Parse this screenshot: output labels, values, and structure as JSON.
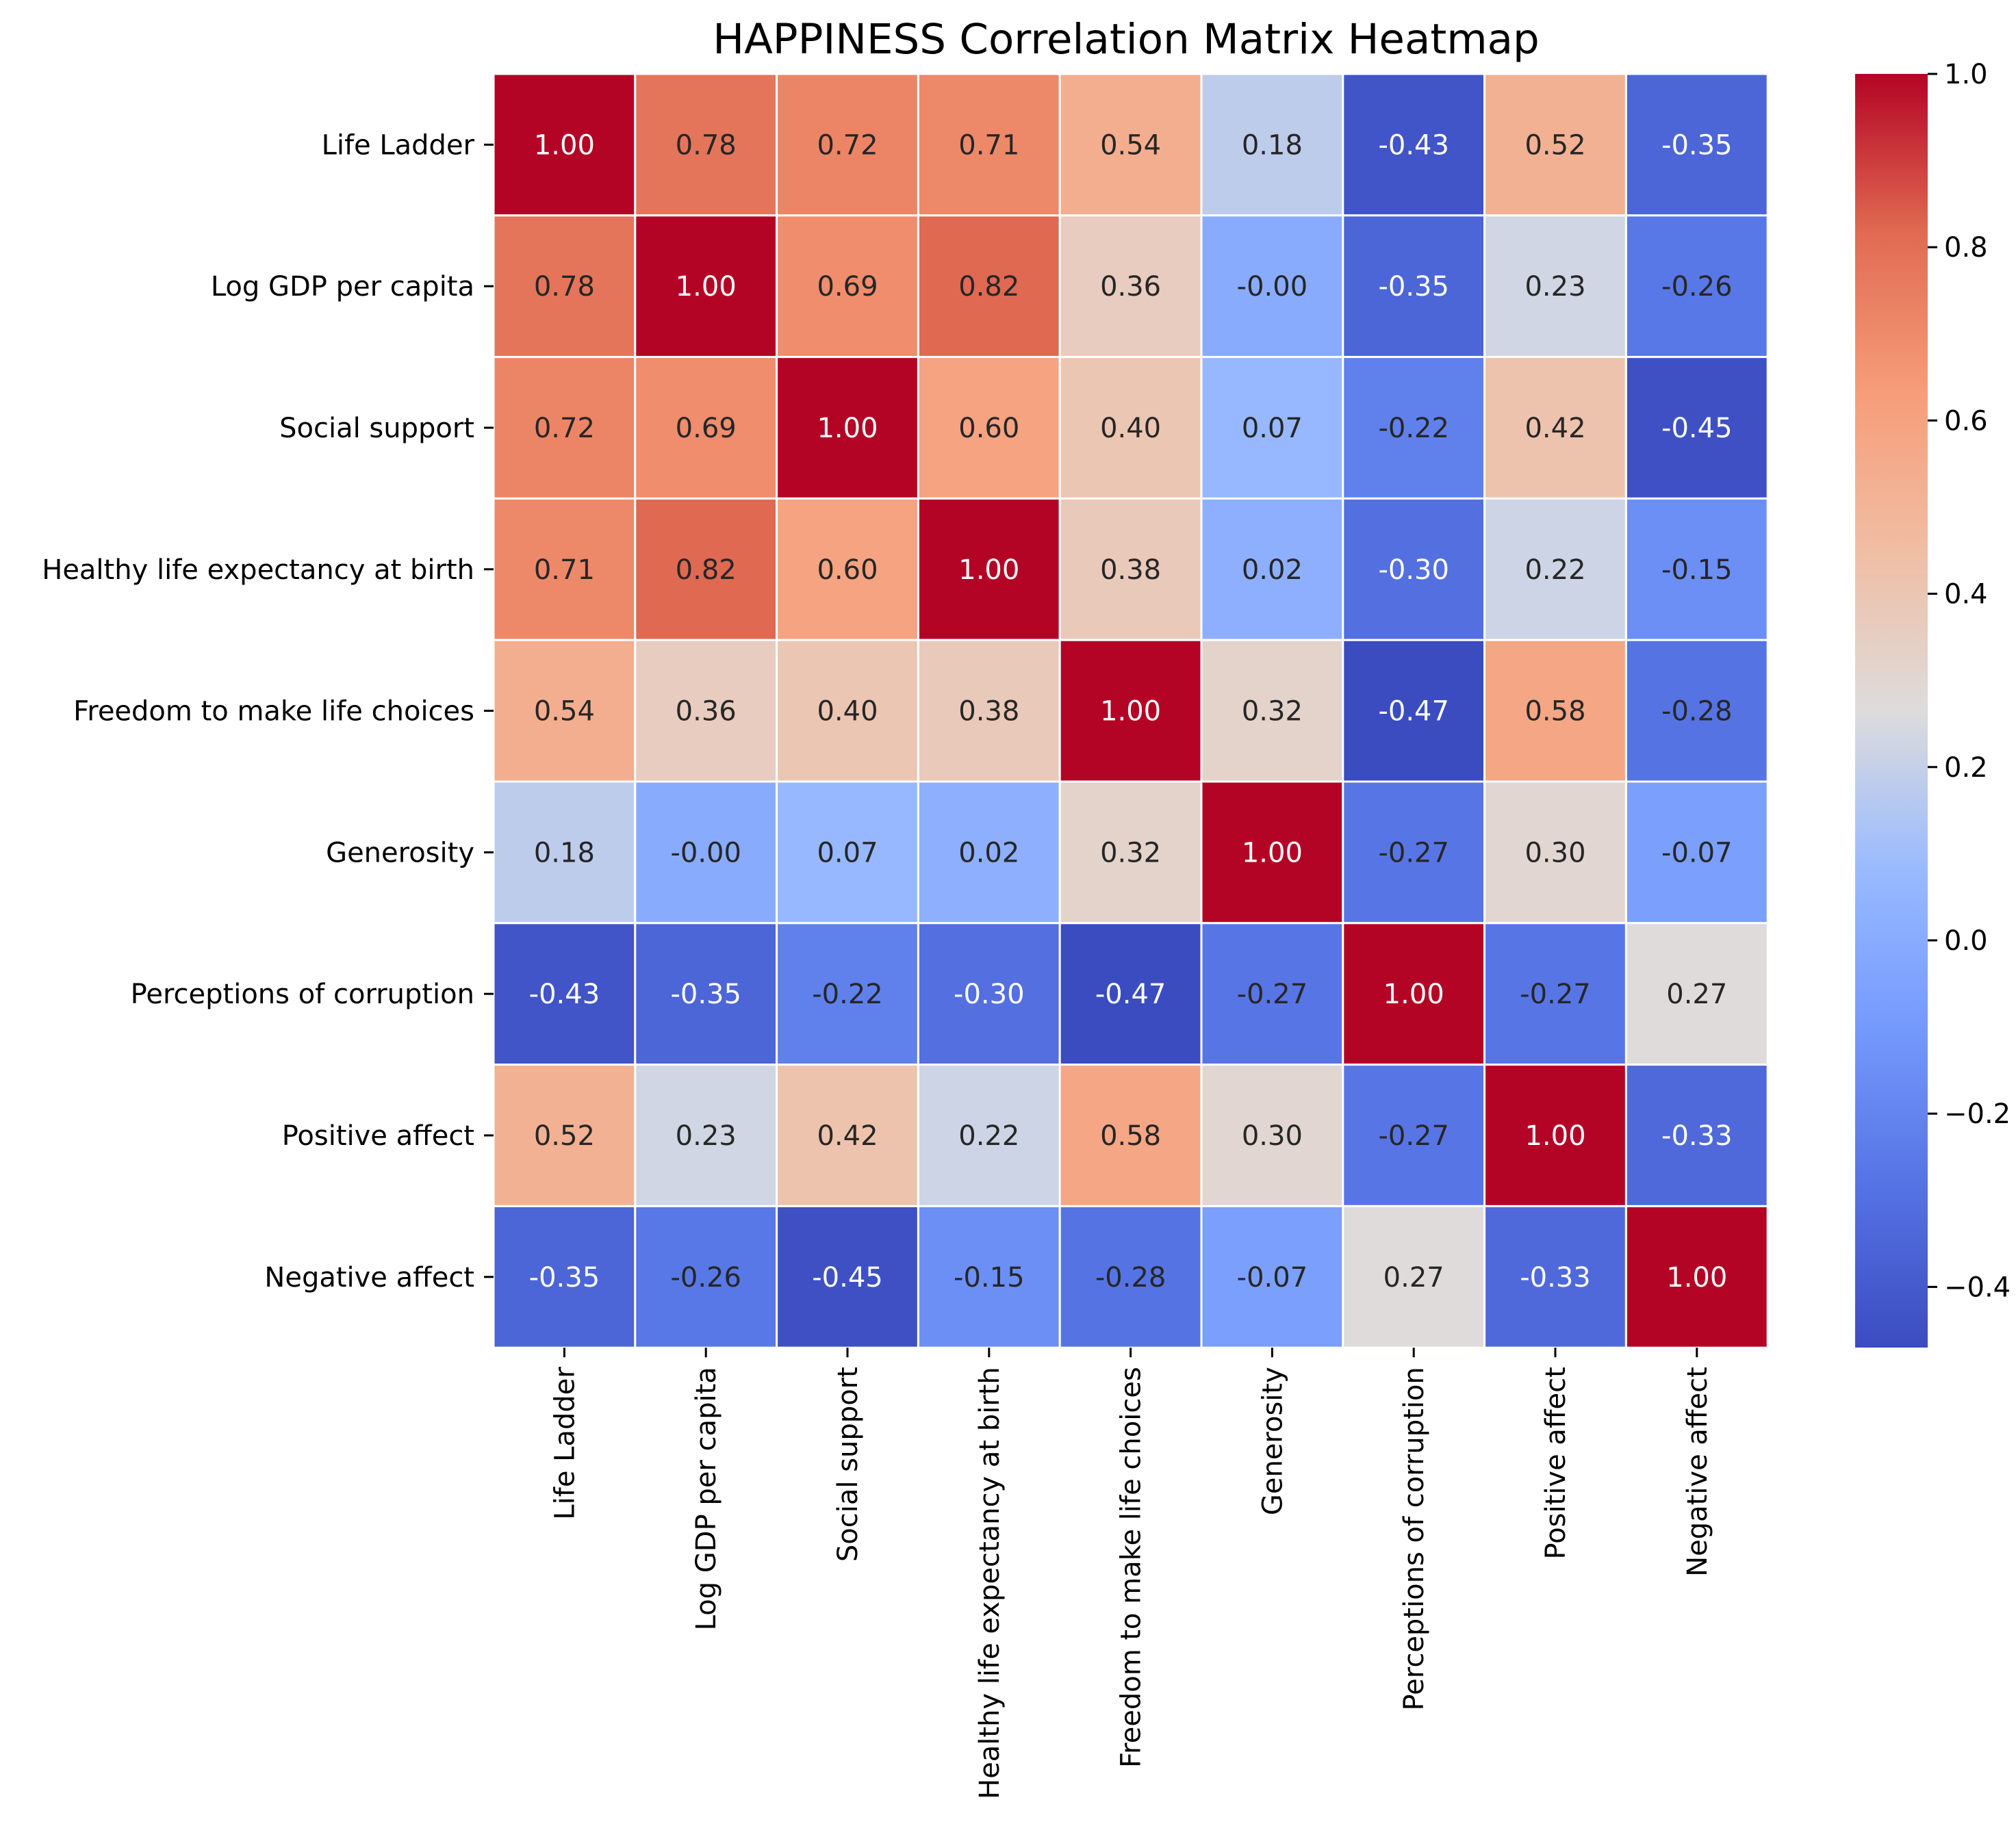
{
  "chart_data": {
    "type": "heatmap",
    "title": "HAPPINESS Correlation Matrix Heatmap",
    "xlabel": "",
    "ylabel": "",
    "labels": [
      "Life Ladder",
      "Log GDP per capita",
      "Social support",
      "Healthy life expectancy at birth",
      "Freedom to make life choices",
      "Generosity",
      "Perceptions of corruption",
      "Positive affect",
      "Negative affect"
    ],
    "values": [
      [
        1.0,
        0.78,
        0.72,
        0.71,
        0.54,
        0.18,
        -0.43,
        0.52,
        -0.35
      ],
      [
        0.78,
        1.0,
        0.69,
        0.82,
        0.36,
        -0.0,
        -0.35,
        0.23,
        -0.26
      ],
      [
        0.72,
        0.69,
        1.0,
        0.6,
        0.4,
        0.07,
        -0.22,
        0.42,
        -0.45
      ],
      [
        0.71,
        0.82,
        0.6,
        1.0,
        0.38,
        0.02,
        -0.3,
        0.22,
        -0.15
      ],
      [
        0.54,
        0.36,
        0.4,
        0.38,
        1.0,
        0.32,
        -0.47,
        0.58,
        -0.28
      ],
      [
        0.18,
        -0.0,
        0.07,
        0.02,
        0.32,
        1.0,
        -0.27,
        0.3,
        -0.07
      ],
      [
        -0.43,
        -0.35,
        -0.22,
        -0.3,
        -0.47,
        -0.27,
        1.0,
        -0.27,
        0.27
      ],
      [
        0.52,
        0.23,
        0.42,
        0.22,
        0.58,
        0.3,
        -0.27,
        1.0,
        -0.33
      ],
      [
        -0.35,
        -0.26,
        -0.45,
        -0.15,
        -0.28,
        -0.07,
        0.27,
        -0.33,
        1.0
      ]
    ],
    "annotations": [
      [
        "1.00",
        "0.78",
        "0.72",
        "0.71",
        "0.54",
        "0.18",
        "-0.43",
        "0.52",
        "-0.35"
      ],
      [
        "0.78",
        "1.00",
        "0.69",
        "0.82",
        "0.36",
        "-0.00",
        "-0.35",
        "0.23",
        "-0.26"
      ],
      [
        "0.72",
        "0.69",
        "1.00",
        "0.60",
        "0.40",
        "0.07",
        "-0.22",
        "0.42",
        "-0.45"
      ],
      [
        "0.71",
        "0.82",
        "0.60",
        "1.00",
        "0.38",
        "0.02",
        "-0.30",
        "0.22",
        "-0.15"
      ],
      [
        "0.54",
        "0.36",
        "0.40",
        "0.38",
        "1.00",
        "0.32",
        "-0.47",
        "0.58",
        "-0.28"
      ],
      [
        "0.18",
        "-0.00",
        "0.07",
        "0.02",
        "0.32",
        "1.00",
        "-0.27",
        "0.30",
        "-0.07"
      ],
      [
        "-0.43",
        "-0.35",
        "-0.22",
        "-0.30",
        "-0.47",
        "-0.27",
        "1.00",
        "-0.27",
        "0.27"
      ],
      [
        "0.52",
        "0.23",
        "0.42",
        "0.22",
        "0.58",
        "0.30",
        "-0.27",
        "1.00",
        "-0.33"
      ],
      [
        "-0.35",
        "-0.26",
        "-0.45",
        "-0.15",
        "-0.28",
        "-0.07",
        "0.27",
        "-0.33",
        "1.00"
      ]
    ],
    "colormap": "coolwarm",
    "color_range": [
      -0.47,
      1.0
    ],
    "colorbar": {
      "ticks": [
        1.0,
        0.8,
        0.6,
        0.4,
        0.2,
        0.0,
        -0.2,
        -0.4
      ],
      "tick_labels": [
        "1.0",
        "0.8",
        "0.6",
        "0.4",
        "0.2",
        "0.0",
        "−0.2",
        "−0.4"
      ]
    },
    "grid": false,
    "legend": "colorbar right"
  }
}
